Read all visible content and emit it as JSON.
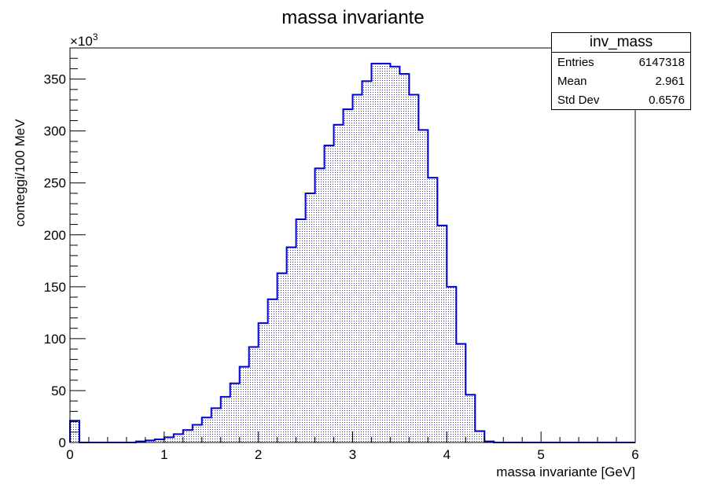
{
  "chart_data": {
    "type": "bar",
    "title": "massa invariante",
    "xlabel": "massa invariante [GeV]",
    "ylabel": "conteggi/100 MeV",
    "y_multiplier": "×10",
    "y_multiplier_exp": "3",
    "xlim": [
      0,
      6
    ],
    "ylim": [
      0,
      380
    ],
    "bin_width": 0.1,
    "x_ticks": [
      "0",
      "1",
      "2",
      "3",
      "4",
      "5",
      "6"
    ],
    "y_ticks": [
      "0",
      "50",
      "100",
      "150",
      "200",
      "250",
      "300",
      "350"
    ],
    "grid": false,
    "line_color": "#0000cc",
    "fill": "hatched-dots",
    "bin_edges_start": 0,
    "values": [
      21,
      0,
      0,
      0,
      0,
      0,
      0,
      1,
      2,
      3,
      5,
      8,
      12,
      17,
      24,
      33,
      44,
      57,
      73,
      92,
      115,
      138,
      163,
      188,
      215,
      240,
      264,
      286,
      306,
      321,
      335,
      348,
      365,
      365,
      362,
      355,
      335,
      301,
      255,
      209,
      150,
      95,
      46,
      11,
      1,
      0,
      0,
      0,
      0,
      0,
      0,
      0,
      0,
      0,
      0,
      0,
      0,
      0,
      0,
      0
    ]
  },
  "stats": {
    "name": "inv_mass",
    "rows": [
      {
        "label": "Entries",
        "value": "6147318"
      },
      {
        "label": "Mean",
        "value": "2.961"
      },
      {
        "label": "Std Dev",
        "value": "0.6576"
      }
    ]
  }
}
